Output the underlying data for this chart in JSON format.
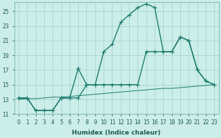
{
  "bg_color": "#cceee8",
  "grid_color": "#aad8d2",
  "line_color": "#1a7a6e",
  "xlabel": "Humidex (Indice chaleur)",
  "xlim_min": -0.5,
  "xlim_max": 23.5,
  "ylim_min": 11,
  "ylim_max": 26.2,
  "xtick_vals": [
    0,
    1,
    2,
    3,
    4,
    5,
    6,
    7,
    8,
    9,
    10,
    11,
    12,
    13,
    14,
    15,
    16,
    17,
    18,
    19,
    20,
    21,
    22,
    23
  ],
  "ytick_vals": [
    11,
    13,
    15,
    17,
    19,
    21,
    23,
    25
  ],
  "line1_x": [
    0,
    1,
    2,
    3,
    4,
    5,
    6,
    7,
    8,
    9,
    10,
    11,
    12,
    13,
    14,
    15,
    16,
    17,
    18,
    19,
    20,
    21,
    22,
    23
  ],
  "line1_y": [
    13.2,
    13.2,
    11.5,
    11.5,
    11.5,
    13.2,
    13.2,
    17.2,
    15.0,
    15.0,
    19.5,
    20.5,
    23.5,
    24.5,
    25.5,
    26.0,
    25.5,
    19.5,
    19.5,
    21.5,
    21.0,
    17.0,
    15.5,
    15.0
  ],
  "line2_x": [
    0,
    1,
    2,
    3,
    4,
    5,
    6,
    7,
    8,
    9,
    10,
    11,
    12,
    13,
    14,
    15,
    16,
    17,
    18,
    19,
    20,
    21,
    22,
    23
  ],
  "line2_y": [
    13.2,
    13.2,
    11.5,
    11.5,
    11.5,
    13.2,
    13.2,
    13.2,
    15.0,
    15.0,
    15.0,
    15.0,
    15.0,
    15.0,
    15.0,
    19.5,
    19.5,
    19.5,
    19.5,
    21.5,
    21.0,
    17.0,
    15.5,
    15.0
  ],
  "line3_x": [
    0,
    1,
    2,
    3,
    4,
    5,
    6,
    7,
    8,
    9,
    10,
    11,
    12,
    13,
    14,
    15,
    16,
    17,
    18,
    19,
    20,
    21,
    22,
    23
  ],
  "line3_y": [
    13.0,
    13.1,
    13.1,
    13.2,
    13.3,
    13.3,
    13.4,
    13.5,
    13.6,
    13.7,
    13.8,
    13.9,
    14.0,
    14.1,
    14.2,
    14.3,
    14.4,
    14.5,
    14.5,
    14.6,
    14.7,
    14.8,
    14.9,
    15.0
  ],
  "marker_size": 2.5,
  "linewidth": 1.0,
  "tick_fontsize": 5.5,
  "xlabel_fontsize": 6.5
}
